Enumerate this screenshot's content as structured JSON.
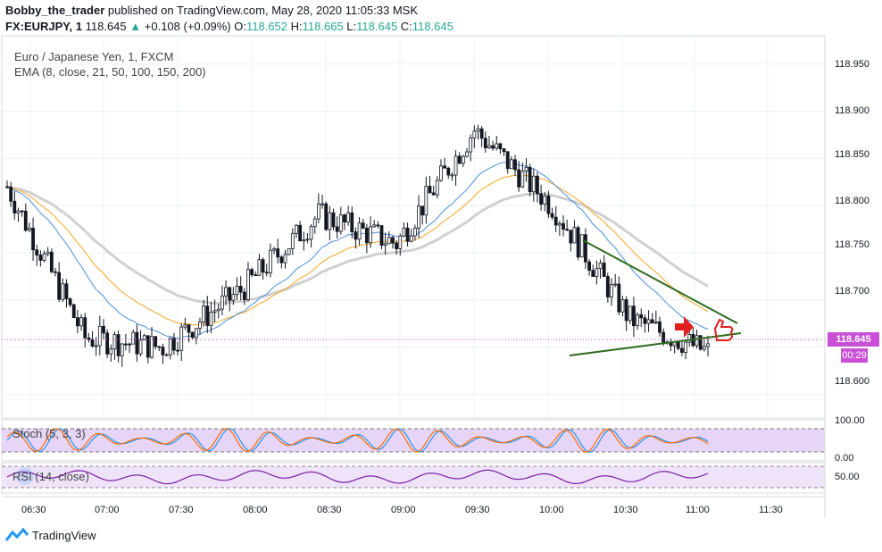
{
  "header": {
    "author": "Bobby_the_trader",
    "published": "published on TradingView.com, May 28, 2020 11:05:33 MSK",
    "symbol": "FX:EURJPY, 1",
    "last": "118.645",
    "change": "+0.108 (+0.09%)",
    "o_label": "O:",
    "o_value": "118.652",
    "h_label": "H:",
    "h_value": "118.665",
    "l_label": "L:",
    "l_value": "118.645",
    "c_label": "C:",
    "c_value": "118.645"
  },
  "legend": {
    "instrument": "Euro / Japanese Yen, 1, FXCM",
    "ema": "EMA (8, close, 21, 50, 100, 150, 200)"
  },
  "price_axis": {
    "ticks": [
      "118.950",
      "118.900",
      "118.850",
      "118.800",
      "118.750",
      "118.700",
      "118.600"
    ],
    "current_price": "118.645",
    "countdown": "00:29"
  },
  "stoch_panel": {
    "label": "Stoch (5, 3, 3)",
    "ticks": [
      "100.00",
      "0.00"
    ]
  },
  "rsi_panel": {
    "label": "RSI (14, close)",
    "ticks": [
      "50.00"
    ]
  },
  "time_axis": {
    "ticks": [
      "06:30",
      "07:00",
      "07:30",
      "08:00",
      "08:30",
      "09:00",
      "09:30",
      "10:00",
      "10:30",
      "11:00",
      "11:30"
    ]
  },
  "footer": {
    "brand": "TradingView"
  },
  "colors": {
    "candle": "#131722",
    "ema_fast": "#f5a623",
    "ema_mid": "#4a90d9",
    "ema_slow": "#d0d0d0",
    "stoch_k": "#2196f3",
    "stoch_d": "#ff6d00",
    "rsi": "#7b1fa2",
    "band": "#e7d5f7",
    "triangle": "#2e6b1f",
    "arrow": "#e02020",
    "price_tag": "#c94fd6"
  },
  "chart_data": [
    {
      "type": "line",
      "title": "Euro / Japanese Yen, 1, FXCM",
      "x": [
        "06:30",
        "07:00",
        "07:30",
        "08:00",
        "08:30",
        "09:00",
        "09:30",
        "10:00",
        "10:30",
        "11:00"
      ],
      "series": [
        {
          "name": "EURJPY close",
          "values": [
            118.82,
            118.66,
            118.65,
            118.71,
            118.79,
            118.76,
            118.88,
            118.8,
            118.68,
            118.645
          ]
        }
      ],
      "ylim": [
        118.575,
        118.98
      ]
    },
    {
      "type": "line",
      "title": "Stoch (5, 3, 3)",
      "ylim": [
        0,
        100
      ]
    },
    {
      "type": "line",
      "title": "RSI (14, close)"
    }
  ]
}
